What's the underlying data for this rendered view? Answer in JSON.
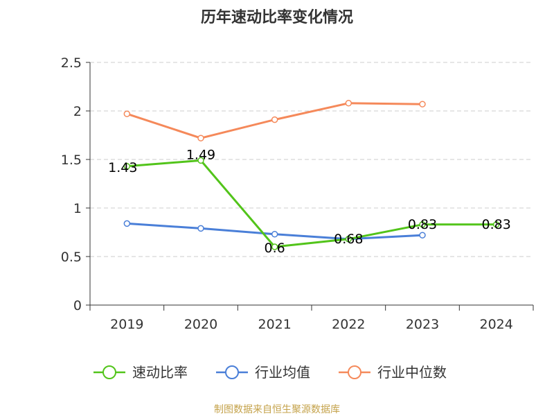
{
  "chart_data": {
    "type": "line",
    "title": "历年速动比率变化情况",
    "categories": [
      "2019",
      "2020",
      "2021",
      "2022",
      "2023",
      "2024"
    ],
    "y_ticks": [
      "0",
      "0.5",
      "1",
      "1.5",
      "2",
      "2.5"
    ],
    "ylim": [
      0,
      2.5
    ],
    "grid": true,
    "legend_position": "bottom",
    "series": [
      {
        "name": "速动比率",
        "color": "#52c41a",
        "values": [
          1.43,
          1.49,
          0.6,
          0.68,
          0.83,
          0.83
        ],
        "labels": [
          "1.43",
          "1.49",
          "0.6",
          "0.68",
          "0.83",
          "0.83"
        ]
      },
      {
        "name": "行业均值",
        "color": "#4a7fd8",
        "values": [
          0.84,
          0.79,
          0.73,
          0.68,
          0.72,
          null
        ]
      },
      {
        "name": "行业中位数",
        "color": "#f5895a",
        "values": [
          1.97,
          1.72,
          1.91,
          2.08,
          2.07,
          null
        ]
      }
    ],
    "source": "制图数据来自恒生聚源数据库"
  }
}
